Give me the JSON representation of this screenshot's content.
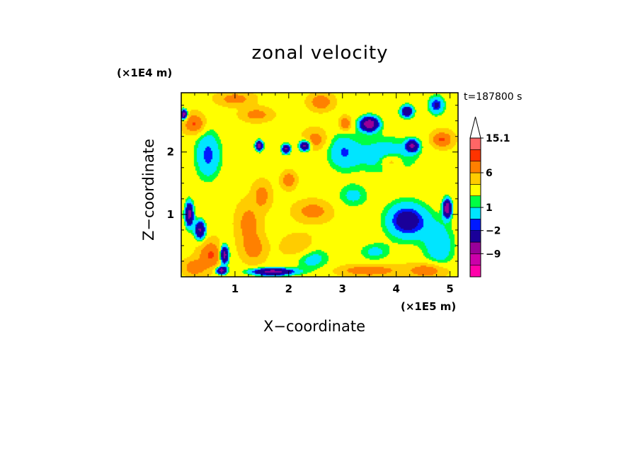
{
  "chart_data": {
    "type": "heatmap",
    "title": "zonal velocity",
    "xlabel": "X−coordinate",
    "ylabel": "Z−coordinate",
    "x_unit": "(×1E5 m)",
    "y_unit": "(×1E4 m)",
    "annotation": "t=187800 s",
    "xlim": [
      0,
      5.15
    ],
    "ylim": [
      0,
      2.95
    ],
    "x_ticks": [
      1,
      2,
      3,
      4,
      5
    ],
    "x_tick_labels": [
      "1",
      "2",
      "3",
      "4",
      "5"
    ],
    "y_ticks": [
      1,
      2
    ],
    "y_tick_labels": [
      "1",
      "2"
    ],
    "colorbar": {
      "levels": [
        -15.1,
        -12,
        -9,
        -6,
        -2,
        -1,
        1,
        2,
        4,
        6,
        9,
        12,
        15.1
      ],
      "colors": [
        "#ff00aa",
        "#cc00aa",
        "#990099",
        "#1a0099",
        "#0019ff",
        "#00e5ff",
        "#00ff44",
        "#ffff00",
        "#ffcc00",
        "#ff8000",
        "#ff3300",
        "#ff6666",
        "#ffbbbb"
      ],
      "labels": [
        {
          "value": 15.1,
          "text": "15.1"
        },
        {
          "value": 6,
          "text": "6"
        },
        {
          "value": 1,
          "text": "1"
        },
        {
          "value": -2,
          "text": "−2"
        },
        {
          "value": -9,
          "text": "−9"
        }
      ],
      "extend": "max"
    },
    "field": {
      "background": 3.5,
      "features": [
        {
          "x": 0.05,
          "z": 2.6,
          "amp": -12,
          "sx": 0.06,
          "sz": 0.08
        },
        {
          "x": 0.15,
          "z": 1.0,
          "amp": -11,
          "sx": 0.08,
          "sz": 0.2
        },
        {
          "x": 0.35,
          "z": 0.75,
          "amp": -10,
          "sx": 0.1,
          "sz": 0.15
        },
        {
          "x": 0.8,
          "z": 0.35,
          "amp": -12,
          "sx": 0.08,
          "sz": 0.15
        },
        {
          "x": 0.75,
          "z": 0.1,
          "amp": -11,
          "sx": 0.1,
          "sz": 0.06
        },
        {
          "x": 1.45,
          "z": 2.1,
          "amp": -12,
          "sx": 0.07,
          "sz": 0.08
        },
        {
          "x": 1.95,
          "z": 2.05,
          "amp": -10,
          "sx": 0.08,
          "sz": 0.08
        },
        {
          "x": 2.3,
          "z": 2.1,
          "amp": -11,
          "sx": 0.1,
          "sz": 0.08
        },
        {
          "x": 3.5,
          "z": 2.45,
          "amp": -12,
          "sx": 0.18,
          "sz": 0.12
        },
        {
          "x": 4.2,
          "z": 2.65,
          "amp": -9,
          "sx": 0.12,
          "sz": 0.1
        },
        {
          "x": 4.3,
          "z": 2.1,
          "amp": -9,
          "sx": 0.12,
          "sz": 0.1
        },
        {
          "x": 4.75,
          "z": 2.75,
          "amp": -6,
          "sx": 0.15,
          "sz": 0.15
        },
        {
          "x": 4.95,
          "z": 1.1,
          "amp": -12,
          "sx": 0.08,
          "sz": 0.15
        },
        {
          "x": 1.7,
          "z": 0.08,
          "amp": -11,
          "sx": 0.4,
          "sz": 0.06
        },
        {
          "x": 4.2,
          "z": 0.9,
          "amp": -7,
          "sx": 0.4,
          "sz": 0.3
        },
        {
          "x": 4.8,
          "z": 0.5,
          "amp": -4,
          "sx": 0.3,
          "sz": 0.4
        },
        {
          "x": 3.2,
          "z": 1.3,
          "amp": -3,
          "sx": 0.3,
          "sz": 0.2
        },
        {
          "x": 3.6,
          "z": 0.4,
          "amp": -3,
          "sx": 0.3,
          "sz": 0.15
        },
        {
          "x": 2.4,
          "z": 0.3,
          "amp": -4,
          "sx": 0.35,
          "sz": 0.2
        },
        {
          "x": 0.5,
          "z": 1.95,
          "amp": -5,
          "sx": 0.25,
          "sz": 0.4
        },
        {
          "x": 3.8,
          "z": 1.95,
          "amp": -4,
          "sx": 0.6,
          "sz": 0.3
        },
        {
          "x": 3.0,
          "z": 2.0,
          "amp": -4,
          "sx": 0.3,
          "sz": 0.3
        },
        {
          "x": 0.25,
          "z": 2.45,
          "amp": 6,
          "sx": 0.18,
          "sz": 0.15
        },
        {
          "x": 0.55,
          "z": 0.35,
          "amp": 6,
          "sx": 0.2,
          "sz": 0.2
        },
        {
          "x": 0.25,
          "z": 0.15,
          "amp": 5,
          "sx": 0.18,
          "sz": 0.12
        },
        {
          "x": 1.25,
          "z": 0.85,
          "amp": 4,
          "sx": 0.2,
          "sz": 0.3
        },
        {
          "x": 1.5,
          "z": 1.3,
          "amp": 4,
          "sx": 0.15,
          "sz": 0.2
        },
        {
          "x": 2.0,
          "z": 1.55,
          "amp": 5,
          "sx": 0.12,
          "sz": 0.12
        },
        {
          "x": 2.6,
          "z": 2.8,
          "amp": 5,
          "sx": 0.2,
          "sz": 0.12
        },
        {
          "x": 2.5,
          "z": 2.2,
          "amp": 4,
          "sx": 0.2,
          "sz": 0.15
        },
        {
          "x": 2.45,
          "z": 1.05,
          "amp": 4,
          "sx": 0.3,
          "sz": 0.15
        },
        {
          "x": 3.05,
          "z": 2.45,
          "amp": 6,
          "sx": 0.1,
          "sz": 0.1
        },
        {
          "x": 3.9,
          "z": 1.85,
          "amp": 4,
          "sx": 0.2,
          "sz": 0.12
        },
        {
          "x": 4.85,
          "z": 2.2,
          "amp": 6,
          "sx": 0.18,
          "sz": 0.12
        },
        {
          "x": 3.5,
          "z": 0.1,
          "amp": 5,
          "sx": 0.5,
          "sz": 0.08
        },
        {
          "x": 4.6,
          "z": 0.1,
          "amp": 5,
          "sx": 0.35,
          "sz": 0.12
        },
        {
          "x": 2.2,
          "z": 0.45,
          "amp": 3,
          "sx": 0.3,
          "sz": 0.2
        },
        {
          "x": 1.35,
          "z": 0.45,
          "amp": 4,
          "sx": 0.2,
          "sz": 0.2
        },
        {
          "x": 1.0,
          "z": 2.85,
          "amp": 4,
          "sx": 0.3,
          "sz": 0.1
        },
        {
          "x": 1.4,
          "z": 2.6,
          "amp": 4,
          "sx": 0.25,
          "sz": 0.1
        }
      ]
    }
  }
}
